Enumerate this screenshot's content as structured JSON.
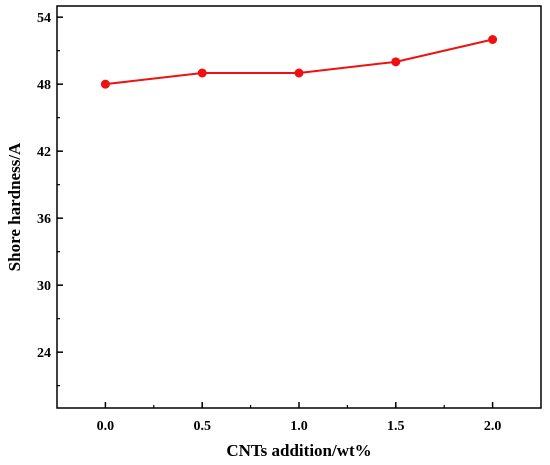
{
  "chart_data": {
    "type": "line",
    "title": "",
    "xlabel": "CNTs addition/wt%",
    "ylabel": "Shore hardness/A",
    "x": [
      0.0,
      0.5,
      1.0,
      1.5,
      2.0
    ],
    "x_tick_labels": [
      "0.0",
      "0.5",
      "1.0",
      "1.5",
      "2.0"
    ],
    "xlim": [
      -0.25,
      2.25
    ],
    "ylim": [
      19,
      55
    ],
    "y_ticks": [
      24,
      30,
      36,
      42,
      48,
      54
    ],
    "y_tick_labels": [
      "24",
      "30",
      "36",
      "42",
      "48",
      "54"
    ],
    "series": [
      {
        "values": [
          48.0,
          49.0,
          49.0,
          50.0,
          52.0
        ],
        "color": "#ee1111"
      }
    ],
    "grid": false,
    "legend": "none",
    "marker": "circle"
  }
}
